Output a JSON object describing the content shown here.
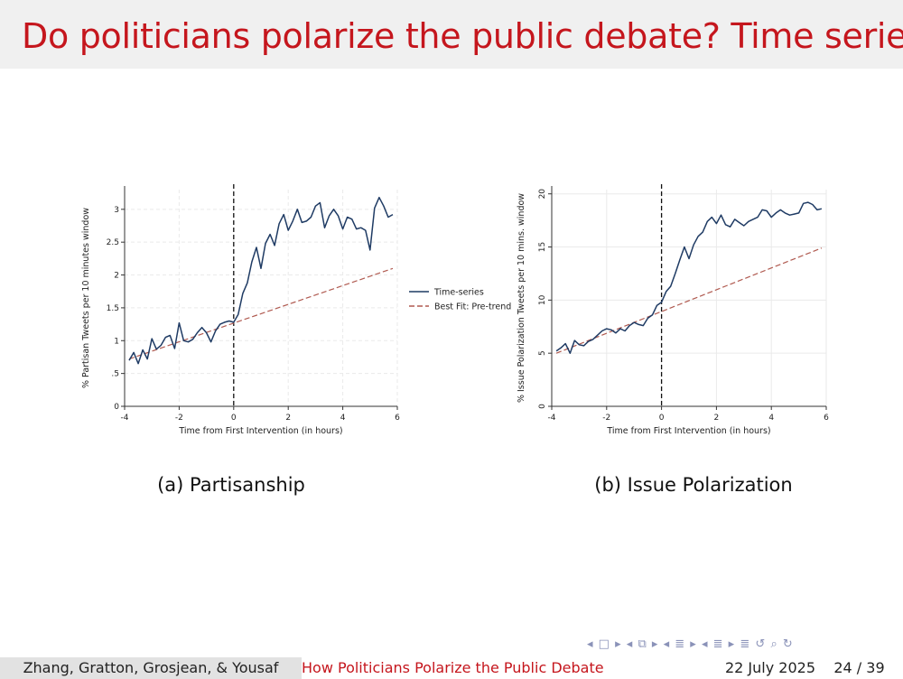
{
  "slide": {
    "title": "Do politicians polarize the public debate? Time series",
    "footer": {
      "authors": "Zhang, Gratton, Grosjean, & Yousaf",
      "short_title": "How Politicians Polarize the Public Debate",
      "date": "22 July 2025",
      "page": "24 / 39"
    }
  },
  "chart_data": [
    {
      "type": "line",
      "caption": "(a) Partisanship",
      "xlabel": "Time from First Intervention (in hours)",
      "ylabel": "% Partisan Tweets per 10 minutes window",
      "xlim": [
        -4,
        6
      ],
      "ylim": [
        0,
        3.3
      ],
      "xticks": [
        "-4",
        "-2",
        "0",
        "2",
        "4",
        "6"
      ],
      "yticks": [
        "0",
        ".5",
        "1",
        "1.5",
        "2",
        "2.5",
        "3"
      ],
      "grid": true,
      "vline_x": 0,
      "legend": [
        "Time-series",
        "Best Fit: Pre-trend"
      ],
      "legend_position": "right",
      "series": [
        {
          "name": "Time-series",
          "color": "#1f3b64",
          "x": [
            -3.833,
            -3.667,
            -3.5,
            -3.333,
            -3.167,
            -3.0,
            -2.833,
            -2.667,
            -2.5,
            -2.333,
            -2.167,
            -2.0,
            -1.833,
            -1.667,
            -1.5,
            -1.333,
            -1.167,
            -1.0,
            -0.833,
            -0.667,
            -0.5,
            -0.333,
            -0.167,
            0.0,
            0.167,
            0.333,
            0.5,
            0.667,
            0.833,
            1.0,
            1.167,
            1.333,
            1.5,
            1.667,
            1.833,
            2.0,
            2.167,
            2.333,
            2.5,
            2.667,
            2.833,
            3.0,
            3.167,
            3.333,
            3.5,
            3.667,
            3.833,
            4.0,
            4.167,
            4.333,
            4.5,
            4.667,
            4.833,
            5.0,
            5.167,
            5.333,
            5.5,
            5.667,
            5.833
          ],
          "y": [
            0.7,
            0.82,
            0.65,
            0.86,
            0.72,
            1.03,
            0.87,
            0.93,
            1.05,
            1.08,
            0.88,
            1.27,
            1.0,
            0.98,
            1.02,
            1.12,
            1.2,
            1.12,
            0.98,
            1.15,
            1.25,
            1.28,
            1.3,
            1.28,
            1.4,
            1.72,
            1.88,
            2.2,
            2.42,
            2.1,
            2.48,
            2.62,
            2.45,
            2.78,
            2.92,
            2.68,
            2.82,
            3.0,
            2.8,
            2.82,
            2.88,
            3.05,
            3.1,
            2.72,
            2.9,
            3.0,
            2.9,
            2.7,
            2.88,
            2.85,
            2.7,
            2.72,
            2.68,
            2.38,
            3.02,
            3.18,
            3.05,
            2.88,
            2.92
          ]
        },
        {
          "name": "Best Fit: Pre-trend",
          "color": "#b05a50",
          "dashed": true,
          "x": [
            -3.833,
            5.833
          ],
          "y": [
            0.72,
            2.1
          ]
        }
      ]
    },
    {
      "type": "line",
      "caption": "(b) Issue Polarization",
      "xlabel": "Time from First Intervention (in hours)",
      "ylabel": "% Issue Polarization Tweets per 10 mins. window",
      "xlim": [
        -4,
        6
      ],
      "ylim": [
        0,
        20.4
      ],
      "xticks": [
        "-4",
        "-2",
        "0",
        "2",
        "4",
        "6"
      ],
      "yticks": [
        "0",
        "5",
        "10",
        "15",
        "20"
      ],
      "grid": true,
      "vline_x": 0,
      "series": [
        {
          "name": "Time-series",
          "color": "#1f3b64",
          "x": [
            -3.833,
            -3.667,
            -3.5,
            -3.333,
            -3.167,
            -3.0,
            -2.833,
            -2.667,
            -2.5,
            -2.333,
            -2.167,
            -2.0,
            -1.833,
            -1.667,
            -1.5,
            -1.333,
            -1.167,
            -1.0,
            -0.833,
            -0.667,
            -0.5,
            -0.333,
            -0.167,
            0.0,
            0.167,
            0.333,
            0.5,
            0.667,
            0.833,
            1.0,
            1.167,
            1.333,
            1.5,
            1.667,
            1.833,
            2.0,
            2.167,
            2.333,
            2.5,
            2.667,
            2.833,
            3.0,
            3.167,
            3.333,
            3.5,
            3.667,
            3.833,
            4.0,
            4.167,
            4.333,
            4.5,
            4.667,
            4.833,
            5.0,
            5.167,
            5.333,
            5.5,
            5.667,
            5.833
          ],
          "y": [
            5.2,
            5.5,
            5.9,
            5.0,
            6.2,
            5.8,
            5.7,
            6.1,
            6.3,
            6.7,
            7.1,
            7.3,
            7.2,
            6.9,
            7.3,
            7.1,
            7.6,
            7.9,
            7.7,
            7.6,
            8.3,
            8.6,
            9.5,
            9.8,
            10.8,
            11.3,
            12.5,
            13.8,
            15.0,
            13.9,
            15.2,
            16.0,
            16.4,
            17.4,
            17.8,
            17.2,
            18.0,
            17.1,
            16.9,
            17.6,
            17.3,
            17.0,
            17.4,
            17.6,
            17.8,
            18.5,
            18.4,
            17.8,
            18.2,
            18.5,
            18.2,
            18.0,
            18.1,
            18.2,
            19.1,
            19.2,
            19.0,
            18.5,
            18.6
          ]
        },
        {
          "name": "Best Fit: Pre-trend",
          "color": "#b05a50",
          "dashed": true,
          "x": [
            -3.833,
            5.833
          ],
          "y": [
            5.0,
            14.9
          ]
        }
      ]
    }
  ]
}
